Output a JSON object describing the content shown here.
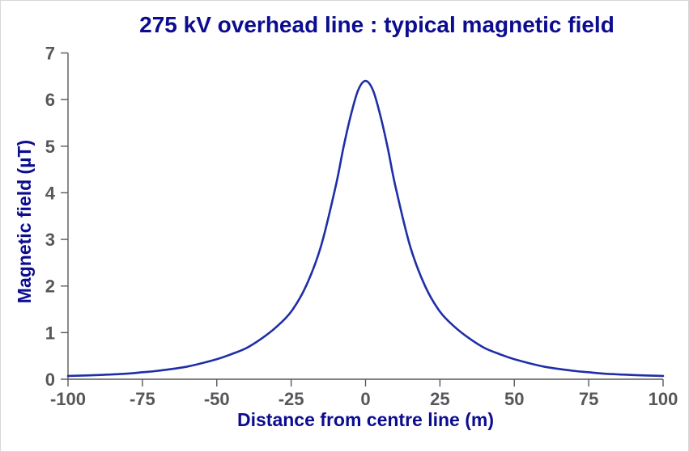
{
  "page": {
    "background_color": "#ffffff",
    "border_color": "#d9d6d6"
  },
  "chart": {
    "title_color": "#0c0c91",
    "axis_title_color": "#0c0c91",
    "curve_color": "#1f2ea6",
    "axis_line_color": "#58595b",
    "tick_label_color": "#56575b"
  },
  "chart_data": {
    "type": "line",
    "title": "275 kV overhead line : typical magnetic field",
    "xlabel": "Distance from centre line (m)",
    "ylabel": "Magnetic field (µT)",
    "xlim": [
      -100,
      100
    ],
    "ylim": [
      0,
      7
    ],
    "x_ticks": [
      -100,
      -75,
      -50,
      -25,
      0,
      25,
      50,
      75,
      100
    ],
    "y_ticks": [
      0,
      1,
      2,
      3,
      4,
      5,
      6,
      7
    ],
    "grid": false,
    "legend_position": "none",
    "series": [
      {
        "name": "typical magnetic field",
        "peak_value_uT": 6.4,
        "peak_x_m": 0,
        "points": [
          [
            -100,
            0.07
          ],
          [
            -90,
            0.09
          ],
          [
            -80,
            0.12
          ],
          [
            -75,
            0.15
          ],
          [
            -70,
            0.18
          ],
          [
            -60,
            0.27
          ],
          [
            -50,
            0.43
          ],
          [
            -45,
            0.54
          ],
          [
            -40,
            0.67
          ],
          [
            -35,
            0.87
          ],
          [
            -30,
            1.12
          ],
          [
            -25,
            1.45
          ],
          [
            -20,
            2.0
          ],
          [
            -15,
            2.85
          ],
          [
            -10,
            4.15
          ],
          [
            -7.5,
            4.95
          ],
          [
            -5,
            5.65
          ],
          [
            -2.5,
            6.2
          ],
          [
            0,
            6.4
          ],
          [
            2.5,
            6.2
          ],
          [
            5,
            5.65
          ],
          [
            7.5,
            4.95
          ],
          [
            10,
            4.15
          ],
          [
            15,
            2.85
          ],
          [
            20,
            2.0
          ],
          [
            25,
            1.45
          ],
          [
            30,
            1.12
          ],
          [
            35,
            0.87
          ],
          [
            40,
            0.67
          ],
          [
            45,
            0.54
          ],
          [
            50,
            0.43
          ],
          [
            60,
            0.27
          ],
          [
            70,
            0.18
          ],
          [
            75,
            0.15
          ],
          [
            80,
            0.12
          ],
          [
            90,
            0.09
          ],
          [
            100,
            0.07
          ]
        ]
      }
    ]
  }
}
